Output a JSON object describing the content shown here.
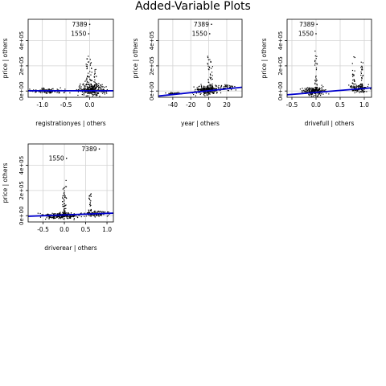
{
  "title": "Added-Variable Plots",
  "colors": {
    "fit_line": "#0000CD",
    "grid": "#d3d3d3",
    "points": "#000000",
    "frame": "#000000"
  },
  "chart_data": [
    {
      "type": "scatter",
      "xlabel": "registrationyes | others",
      "ylabel": "price | others",
      "xlim": [
        -1.3,
        0.5
      ],
      "ylim": [
        -50000,
        570000
      ],
      "xticks": [
        -1.0,
        -0.5,
        0.0
      ],
      "xtick_labels": [
        "-1.0",
        "-0.5",
        "0.0"
      ],
      "yticks": [
        0,
        200000,
        400000
      ],
      "ytick_labels": [
        "0e+00",
        "2e+05",
        "4e+05"
      ],
      "grid": true,
      "fit_line": {
        "x0": -1.3,
        "y0": 2000,
        "x1": 0.5,
        "y1": 2000
      },
      "labeled_points": [
        {
          "label": "7389",
          "x": 0.0,
          "y": 530000
        },
        {
          "label": "1550",
          "x": -0.02,
          "y": 455000
        }
      ],
      "clusters": [
        {
          "x_center": -0.9,
          "x_spread": 0.3,
          "y_center": 0,
          "y_spread": 15000,
          "n": 130
        },
        {
          "x_center": 0.05,
          "x_spread": 0.25,
          "y_center": 10000,
          "y_spread": 45000,
          "n": 260
        }
      ],
      "spikes": [
        {
          "x": -0.05,
          "y_max": 300000
        },
        {
          "x": 0.02,
          "y_max": 260000
        },
        {
          "x": 0.12,
          "y_max": 220000
        }
      ]
    },
    {
      "type": "scatter",
      "xlabel": "year | others",
      "ylabel": "price | others",
      "xlim": [
        -56,
        37
      ],
      "ylim": [
        -50000,
        570000
      ],
      "xticks": [
        -40,
        -20,
        0,
        20
      ],
      "xtick_labels": [
        "-40",
        "-20",
        "0",
        "20"
      ],
      "yticks": [
        0,
        200000,
        400000
      ],
      "ytick_labels": [
        "0e+00",
        "2e+05",
        "4e+05"
      ],
      "grid": true,
      "fit_line": {
        "x0": -56,
        "y0": -40000,
        "x1": 37,
        "y1": 30000
      },
      "labeled_points": [
        {
          "label": "7389",
          "x": 3,
          "y": 530000
        },
        {
          "label": "1550",
          "x": 1,
          "y": 455000
        }
      ],
      "clusters": [
        {
          "x_center": -2,
          "x_spread": 10,
          "y_center": 5000,
          "y_spread": 30000,
          "n": 260
        },
        {
          "x_center": -40,
          "x_spread": 8,
          "y_center": -20000,
          "y_spread": 8000,
          "n": 40
        },
        {
          "x_center": 20,
          "x_spread": 10,
          "y_center": 30000,
          "y_spread": 20000,
          "n": 50
        }
      ],
      "spikes": [
        {
          "x": 0,
          "y_max": 280000
        },
        {
          "x": 3,
          "y_max": 240000
        }
      ]
    },
    {
      "type": "scatter",
      "xlabel": "drivefull | others",
      "ylabel": "price | others",
      "xlim": [
        -0.6,
        1.15
      ],
      "ylim": [
        -50000,
        570000
      ],
      "xticks": [
        -0.5,
        0.0,
        0.5,
        1.0
      ],
      "xtick_labels": [
        "-0.5",
        "0.0",
        "0.5",
        "1.0"
      ],
      "yticks": [
        0,
        200000,
        400000
      ],
      "ytick_labels": [
        "0e+00",
        "2e+05",
        "4e+05"
      ],
      "grid": true,
      "fit_line": {
        "x0": -0.6,
        "y0": -30000,
        "x1": 1.15,
        "y1": 25000
      },
      "labeled_points": [
        {
          "label": "7389",
          "x": 0.02,
          "y": 530000
        },
        {
          "label": "1550",
          "x": 0.0,
          "y": 455000
        }
      ],
      "clusters": [
        {
          "x_center": -0.05,
          "x_spread": 0.2,
          "y_center": 0,
          "y_spread": 30000,
          "n": 220
        },
        {
          "x_center": 0.9,
          "x_spread": 0.15,
          "y_center": 20000,
          "y_spread": 30000,
          "n": 120
        }
      ],
      "spikes": [
        {
          "x": 0.0,
          "y_max": 320000
        },
        {
          "x": 0.78,
          "y_max": 280000
        },
        {
          "x": 0.95,
          "y_max": 250000
        }
      ]
    },
    {
      "type": "scatter",
      "xlabel": "driverear | others",
      "ylabel": "price | others",
      "xlim": [
        -0.85,
        1.15
      ],
      "ylim": [
        -50000,
        570000
      ],
      "xticks": [
        -0.5,
        0.0,
        0.5,
        1.0
      ],
      "xtick_labels": [
        "-0.5",
        "0.0",
        "0.5",
        "1.0"
      ],
      "yticks": [
        0,
        200000,
        400000
      ],
      "ytick_labels": [
        "0e+00",
        "2e+05",
        "4e+05"
      ],
      "grid": true,
      "fit_line": {
        "x0": -0.85,
        "y0": -5000,
        "x1": 1.15,
        "y1": 20000
      },
      "labeled_points": [
        {
          "label": "7389",
          "x": 0.82,
          "y": 530000
        },
        {
          "label": "1550",
          "x": 0.05,
          "y": 455000
        }
      ],
      "clusters": [
        {
          "x_center": -0.1,
          "x_spread": 0.35,
          "y_center": 0,
          "y_spread": 20000,
          "n": 260
        },
        {
          "x_center": 0.8,
          "x_spread": 0.25,
          "y_center": 15000,
          "y_spread": 20000,
          "n": 90
        }
      ],
      "spikes": [
        {
          "x": 0.02,
          "y_max": 280000
        },
        {
          "x": -0.02,
          "y_max": 230000
        },
        {
          "x": 0.6,
          "y_max": 180000
        }
      ]
    }
  ]
}
